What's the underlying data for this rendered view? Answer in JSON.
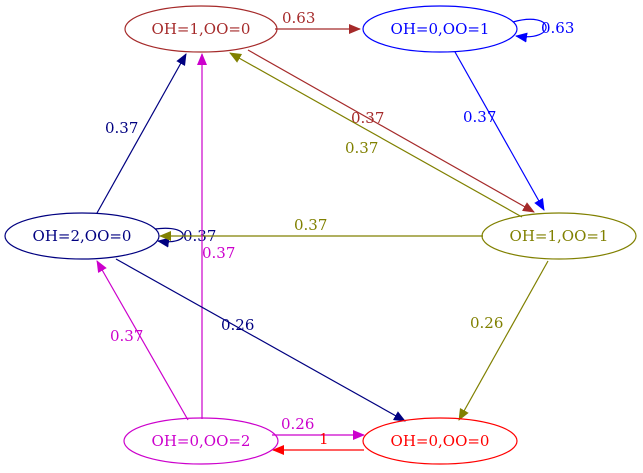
{
  "colors": {
    "brown": "#a52a2a",
    "blue": "#0000ff",
    "olive": "#808000",
    "navy": "#000080",
    "magenta": "#cc00cc",
    "red": "#ff0000"
  },
  "nodes": [
    {
      "id": "n10",
      "label": "OH=1,OO=0",
      "color": "#a52a2a"
    },
    {
      "id": "n01",
      "label": "OH=0,OO=1",
      "color": "#0000ff"
    },
    {
      "id": "n20",
      "label": "OH=2,OO=0",
      "color": "#000080"
    },
    {
      "id": "n11",
      "label": "OH=1,OO=1",
      "color": "#808000"
    },
    {
      "id": "n02",
      "label": "OH=0,OO=2",
      "color": "#cc00cc"
    },
    {
      "id": "n00",
      "label": "OH=0,OO=0",
      "color": "#ff0000"
    }
  ],
  "edges": [
    {
      "id": "e10_01",
      "from": "n10",
      "to": "n01",
      "label": "0.63",
      "color": "#a52a2a"
    },
    {
      "id": "e01_01",
      "from": "n01",
      "to": "n01",
      "label": "0.63",
      "color": "#0000ff"
    },
    {
      "id": "e01_11",
      "from": "n01",
      "to": "n11",
      "label": "0.37",
      "color": "#0000ff"
    },
    {
      "id": "e10_11",
      "from": "n10",
      "to": "n11",
      "label": "0.37",
      "color": "#a52a2a"
    },
    {
      "id": "e11_10",
      "from": "n11",
      "to": "n10",
      "label": "0.37",
      "color": "#808000"
    },
    {
      "id": "e20_10",
      "from": "n20",
      "to": "n10",
      "label": "0.37",
      "color": "#000080"
    },
    {
      "id": "e20_20",
      "from": "n20",
      "to": "n20",
      "label": "0.37",
      "color": "#000080"
    },
    {
      "id": "e11_20",
      "from": "n11",
      "to": "n20",
      "label": "0.37",
      "color": "#808000"
    },
    {
      "id": "e02_10",
      "from": "n02",
      "to": "n10",
      "label": "0.37",
      "color": "#cc00cc"
    },
    {
      "id": "e11_00",
      "from": "n11",
      "to": "n00",
      "label": "0.26",
      "color": "#808000"
    },
    {
      "id": "e20_00",
      "from": "n20",
      "to": "n00",
      "label": "0.26",
      "color": "#000080"
    },
    {
      "id": "e02_20",
      "from": "n02",
      "to": "n20",
      "label": "0.37",
      "color": "#cc00cc"
    },
    {
      "id": "e02_00",
      "from": "n02",
      "to": "n00",
      "label": "0.26",
      "color": "#cc00cc"
    },
    {
      "id": "e00_02",
      "from": "n00",
      "to": "n02",
      "label": "1",
      "color": "#ff0000"
    }
  ]
}
